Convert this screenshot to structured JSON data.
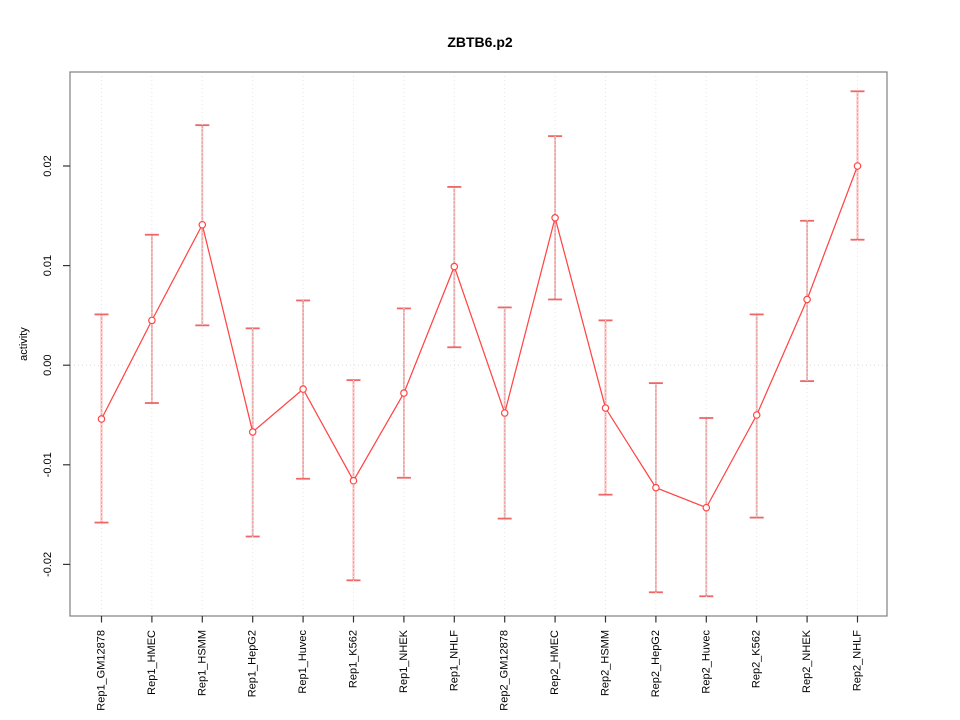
{
  "figure": {
    "title": "ZBTB6.p2",
    "background": "#ffffff"
  },
  "chart_data": {
    "type": "line",
    "title": "ZBTB6.p2",
    "xlabel": "",
    "ylabel": "activity",
    "legend": "none",
    "grid": "dotted vertical gridline at each category; dotted horizontal line at y=0",
    "marker": "open-circle",
    "error_bars": true,
    "ylim": [
      -0.0255,
      0.0295
    ],
    "ytick_values": [
      0.02,
      0.01,
      0.0,
      -0.01,
      -0.02
    ],
    "ytick_labels": [
      "0.02",
      "0.01",
      "0.00",
      "-0.01",
      "-0.02"
    ],
    "categories": [
      "Rep1_GM12878",
      "Rep1_HMEC",
      "Rep1_HSMM",
      "Rep1_HepG2",
      "Rep1_Huvec",
      "Rep1_K562",
      "Rep1_NHEK",
      "Rep1_NHLF",
      "Rep2_GM12878",
      "Rep2_HMEC",
      "Rep2_HSMM",
      "Rep2_HepG2",
      "Rep2_Huvec",
      "Rep2_K562",
      "Rep2_NHEK",
      "Rep2_NHLF"
    ],
    "series": [
      {
        "name": "activity",
        "values": [
          -0.0054,
          0.0045,
          0.0141,
          -0.0067,
          -0.0024,
          -0.0116,
          -0.0028,
          0.0099,
          -0.0048,
          0.0148,
          -0.0043,
          -0.0123,
          -0.0143,
          -0.005,
          0.0066,
          0.02
        ],
        "ci_upper": [
          0.0051,
          0.0131,
          0.0241,
          0.0037,
          0.0065,
          -0.0015,
          0.0057,
          0.0179,
          0.0058,
          0.023,
          0.0045,
          -0.0018,
          -0.0053,
          0.0051,
          0.0145,
          0.0275
        ],
        "ci_lower": [
          -0.0158,
          -0.0038,
          0.004,
          -0.0172,
          -0.0114,
          -0.0216,
          -0.0113,
          0.0018,
          -0.0154,
          0.0066,
          -0.013,
          -0.0228,
          -0.0232,
          -0.0153,
          -0.0016,
          0.0126
        ]
      }
    ],
    "colors": {
      "line": "#ff4646",
      "marker": "#ff4646",
      "error_bar": "#f7a4a4",
      "error_cap": "#ef6666",
      "grid": "#e6e6e6",
      "zero_line": "#dedede",
      "box": "#808080",
      "tick": "#333333",
      "text": "#000000",
      "background": "#ffffff"
    }
  }
}
